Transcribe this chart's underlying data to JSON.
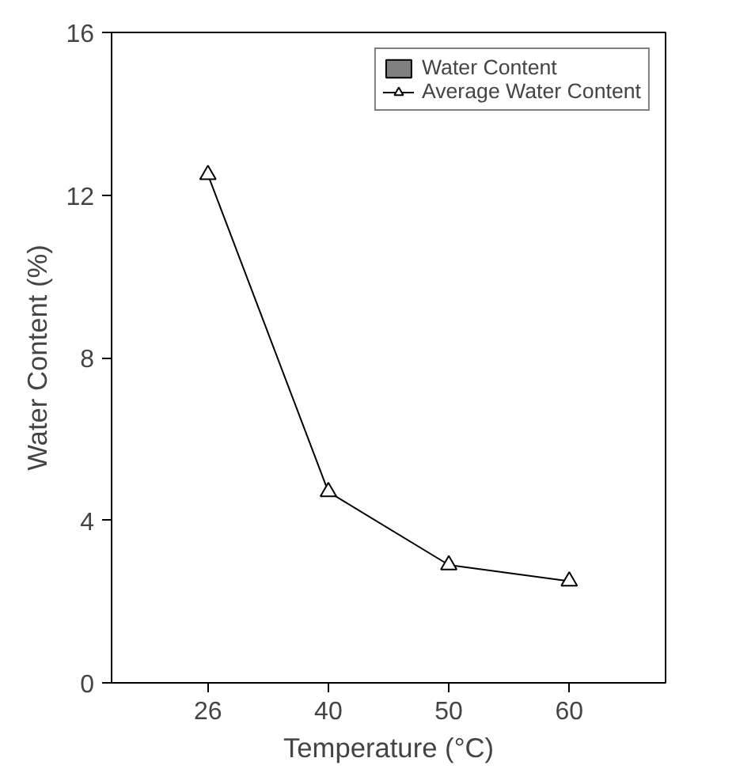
{
  "chart_data": {
    "type": "line",
    "xlabel": "Temperature (°C)",
    "ylabel": "Water Content (%)",
    "categories": [
      "26",
      "40",
      "50",
      "60"
    ],
    "ylim": [
      0,
      16
    ],
    "yticks": [
      0,
      4,
      8,
      12,
      16
    ],
    "grid": false,
    "legend": "top right",
    "marker": "triangle",
    "line_style": "solid",
    "series": [
      {
        "name": "Water Content",
        "type": "bar",
        "color": "#808080",
        "values": [
          null,
          null,
          null,
          null
        ]
      },
      {
        "name": "Average Water Content",
        "color": "#000000",
        "values": [
          12.5,
          4.7,
          2.9,
          2.5
        ]
      }
    ]
  }
}
